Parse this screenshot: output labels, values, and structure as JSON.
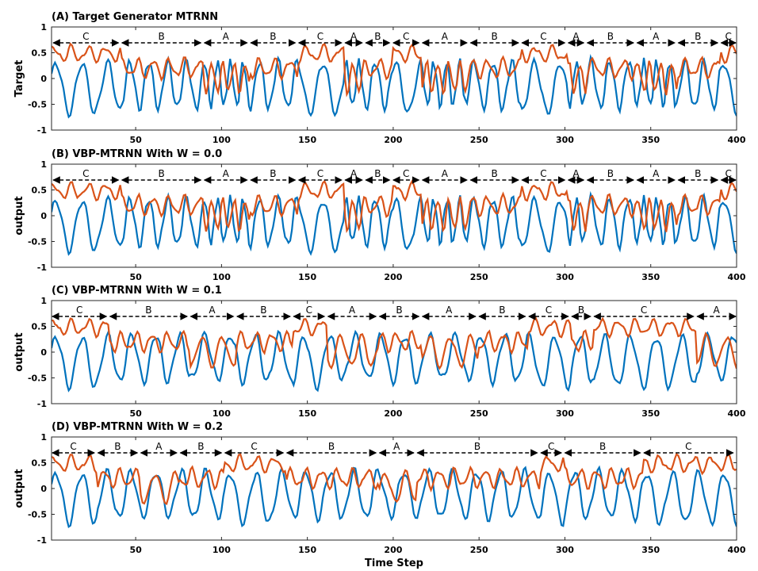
{
  "colors": {
    "blue": "#0072BD",
    "orange": "#D95319",
    "axis": "#262626",
    "arrow": "#000000"
  },
  "xlabel": "Time Step",
  "chart_data": [
    {
      "type": "line",
      "title": "(A) Target Generator MTRNN",
      "ylabel": "Target",
      "xlim": [
        1,
        400
      ],
      "ylim": [
        -1,
        1
      ],
      "xticks": [
        50,
        100,
        150,
        200,
        250,
        300,
        350,
        400
      ],
      "yticks": [
        1,
        0.5,
        0,
        -0.5,
        -1
      ],
      "series": [
        {
          "name": "blue-signal"
        },
        {
          "name": "orange-signal"
        }
      ],
      "segments": [
        {
          "label": "C",
          "start": 2,
          "end": 40
        },
        {
          "label": "B",
          "start": 42,
          "end": 88
        },
        {
          "label": "A",
          "start": 90,
          "end": 115
        },
        {
          "label": "B",
          "start": 117,
          "end": 143
        },
        {
          "label": "C",
          "start": 145,
          "end": 170
        },
        {
          "label": "A",
          "start": 172,
          "end": 182
        },
        {
          "label": "B",
          "start": 184,
          "end": 198
        },
        {
          "label": "C",
          "start": 200,
          "end": 215
        },
        {
          "label": "A",
          "start": 217,
          "end": 243
        },
        {
          "label": "B",
          "start": 245,
          "end": 273
        },
        {
          "label": "C",
          "start": 275,
          "end": 300
        },
        {
          "label": "A",
          "start": 302,
          "end": 311
        },
        {
          "label": "B",
          "start": 313,
          "end": 340
        },
        {
          "label": "A",
          "start": 342,
          "end": 364
        },
        {
          "label": "B",
          "start": 366,
          "end": 389
        },
        {
          "label": "C",
          "start": 391,
          "end": 400
        }
      ]
    },
    {
      "type": "line",
      "title": "(B) VBP-MTRNN With W = 0.0",
      "ylabel": "output",
      "xlim": [
        1,
        400
      ],
      "ylim": [
        -1,
        1
      ],
      "xticks": [
        50,
        100,
        150,
        200,
        250,
        300,
        350,
        400
      ],
      "yticks": [
        1,
        0.5,
        0,
        -0.5,
        -1
      ],
      "series": [
        {
          "name": "blue-signal"
        },
        {
          "name": "orange-signal"
        }
      ],
      "segments": [
        {
          "label": "C",
          "start": 2,
          "end": 40
        },
        {
          "label": "B",
          "start": 42,
          "end": 88
        },
        {
          "label": "A",
          "start": 90,
          "end": 115
        },
        {
          "label": "B",
          "start": 117,
          "end": 143
        },
        {
          "label": "C",
          "start": 145,
          "end": 170
        },
        {
          "label": "A",
          "start": 172,
          "end": 182
        },
        {
          "label": "B",
          "start": 184,
          "end": 198
        },
        {
          "label": "C",
          "start": 200,
          "end": 215
        },
        {
          "label": "A",
          "start": 217,
          "end": 243
        },
        {
          "label": "B",
          "start": 245,
          "end": 273
        },
        {
          "label": "C",
          "start": 275,
          "end": 300
        },
        {
          "label": "A",
          "start": 302,
          "end": 311
        },
        {
          "label": "B",
          "start": 313,
          "end": 340
        },
        {
          "label": "A",
          "start": 342,
          "end": 364
        },
        {
          "label": "B",
          "start": 366,
          "end": 389
        },
        {
          "label": "C",
          "start": 391,
          "end": 400
        }
      ]
    },
    {
      "type": "line",
      "title": "(C) VBP-MTRNN With W = 0.1",
      "ylabel": "output",
      "xlim": [
        1,
        400
      ],
      "ylim": [
        -1,
        1
      ],
      "xticks": [
        50,
        100,
        150,
        200,
        250,
        300,
        350,
        400
      ],
      "yticks": [
        1,
        0.5,
        0,
        -0.5,
        -1
      ],
      "series": [
        {
          "name": "blue-signal"
        },
        {
          "name": "orange-signal"
        }
      ],
      "segments": [
        {
          "label": "C",
          "start": 0,
          "end": 33
        },
        {
          "label": "B",
          "start": 35,
          "end": 80
        },
        {
          "label": "A",
          "start": 82,
          "end": 107
        },
        {
          "label": "B",
          "start": 109,
          "end": 140
        },
        {
          "label": "C",
          "start": 142,
          "end": 160
        },
        {
          "label": "A",
          "start": 162,
          "end": 190
        },
        {
          "label": "B",
          "start": 192,
          "end": 215
        },
        {
          "label": "A",
          "start": 217,
          "end": 248
        },
        {
          "label": "B",
          "start": 250,
          "end": 277
        },
        {
          "label": "C",
          "start": 279,
          "end": 302
        },
        {
          "label": "B",
          "start": 304,
          "end": 315
        },
        {
          "label": "C",
          "start": 317,
          "end": 375
        },
        {
          "label": "A",
          "start": 377,
          "end": 400
        }
      ]
    },
    {
      "type": "line",
      "title": "(D) VBP-MTRNN With W = 0.2",
      "ylabel": "output",
      "xlim": [
        1,
        400
      ],
      "ylim": [
        -1,
        1
      ],
      "xticks": [
        50,
        100,
        150,
        200,
        250,
        300,
        350,
        400
      ],
      "yticks": [
        1,
        0.5,
        0,
        -0.5,
        -1
      ],
      "series": [
        {
          "name": "blue-signal"
        },
        {
          "name": "orange-signal"
        }
      ],
      "segments": [
        {
          "label": "C",
          "start": 1,
          "end": 26
        },
        {
          "label": "B",
          "start": 28,
          "end": 51
        },
        {
          "label": "A",
          "start": 53,
          "end": 74
        },
        {
          "label": "B",
          "start": 76,
          "end": 100
        },
        {
          "label": "C",
          "start": 102,
          "end": 136
        },
        {
          "label": "B",
          "start": 138,
          "end": 190
        },
        {
          "label": "A",
          "start": 192,
          "end": 212
        },
        {
          "label": "B",
          "start": 214,
          "end": 284
        },
        {
          "label": "C",
          "start": 286,
          "end": 298
        },
        {
          "label": "B",
          "start": 300,
          "end": 344
        },
        {
          "label": "C",
          "start": 346,
          "end": 398
        }
      ]
    }
  ]
}
